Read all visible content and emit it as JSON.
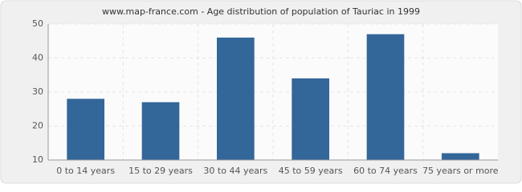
{
  "chart_data": {
    "type": "bar",
    "title": "www.map-france.com - Age distribution of population of Tauriac in 1999",
    "categories": [
      "0 to 14 years",
      "15 to 29 years",
      "30 to 44 years",
      "45 to 59 years",
      "60 to 74 years",
      "75 years or more"
    ],
    "values": [
      28,
      27,
      46,
      34,
      47,
      12
    ],
    "color": "#336699",
    "ylim": [
      10,
      50
    ],
    "yticks": [
      10,
      20,
      30,
      40,
      50
    ],
    "grid": true
  }
}
